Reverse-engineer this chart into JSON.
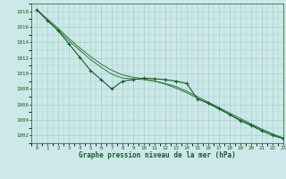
{
  "title": "Graphe pression niveau de la mer (hPa)",
  "background_color": "#cce8e8",
  "grid_color": "#aacece",
  "line_color_dark": "#1a5c28",
  "line_color_mid": "#2d7a3a",
  "xlim": [
    -0.5,
    23
  ],
  "ylim": [
    1001.0,
    1019.0
  ],
  "yticks": [
    1002,
    1004,
    1006,
    1008,
    1010,
    1012,
    1014,
    1016,
    1018
  ],
  "xticks": [
    0,
    1,
    2,
    3,
    4,
    5,
    6,
    7,
    8,
    9,
    10,
    11,
    12,
    13,
    14,
    15,
    16,
    17,
    18,
    19,
    20,
    21,
    22,
    23
  ],
  "xlabels": [
    "0",
    "1",
    "2",
    "3",
    "4",
    "5",
    "6",
    "7",
    "8",
    "9",
    "10",
    "11",
    "12",
    "13",
    "14",
    "15",
    "16",
    "17",
    "18",
    "19",
    "20",
    "21",
    "22",
    "23"
  ],
  "x": [
    0,
    1,
    2,
    3,
    4,
    5,
    6,
    7,
    8,
    9,
    10,
    11,
    12,
    13,
    14,
    15,
    16,
    17,
    18,
    19,
    20,
    21,
    22,
    23
  ],
  "y_raw": [
    1018.2,
    1016.8,
    1015.5,
    1013.8,
    1012.1,
    1010.4,
    1009.2,
    1008.0,
    1009.0,
    1009.2,
    1009.4,
    1009.3,
    1009.2,
    1009.0,
    1008.7,
    1006.7,
    1006.2,
    1005.5,
    1004.7,
    1003.9,
    1003.3,
    1002.6,
    1002.0,
    1001.6
  ],
  "y_smooth1": [
    1018.2,
    1016.8,
    1015.6,
    1014.2,
    1013.0,
    1011.8,
    1010.8,
    1009.9,
    1009.4,
    1009.3,
    1009.2,
    1009.0,
    1008.7,
    1008.3,
    1007.7,
    1007.0,
    1006.3,
    1005.6,
    1004.9,
    1004.2,
    1003.5,
    1002.8,
    1002.2,
    1001.6
  ],
  "y_smooth2": [
    1018.2,
    1017.0,
    1015.8,
    1014.5,
    1013.3,
    1012.2,
    1011.2,
    1010.4,
    1009.8,
    1009.5,
    1009.3,
    1009.0,
    1008.6,
    1008.1,
    1007.5,
    1006.8,
    1006.1,
    1005.4,
    1004.7,
    1004.0,
    1003.4,
    1002.8,
    1002.2,
    1001.7
  ]
}
